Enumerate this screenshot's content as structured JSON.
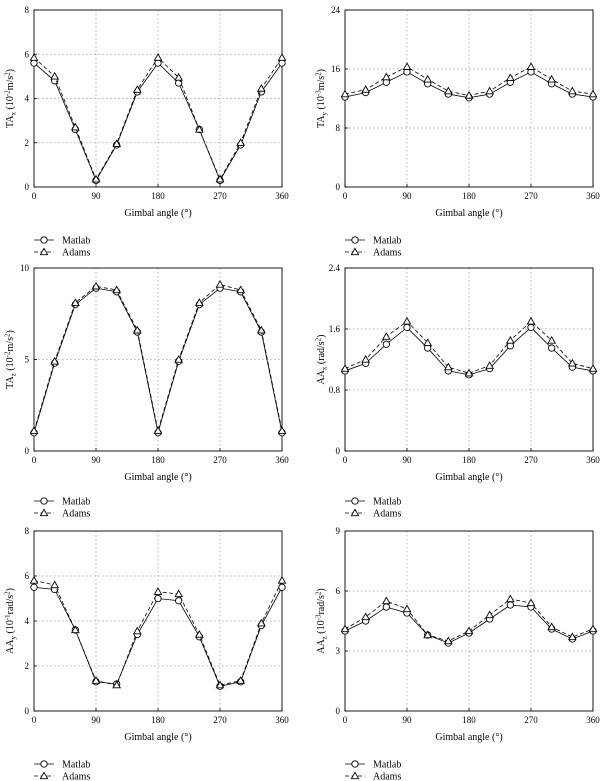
{
  "chart_data": [
    {
      "type": "line",
      "ylabel_main": "TA",
      "ylabel_sub": "x",
      "ylabel_unit": "(10",
      "ylabel_exp": "-2",
      "ylabel_tail": "m/s",
      "ylabel_sq": "2",
      "ylabel_end": ")",
      "xlabel": "Gimbal angle (°)",
      "xlim": [
        0,
        360
      ],
      "ylim": [
        0,
        8
      ],
      "xticks": [
        "0",
        "90",
        "180",
        "270",
        "360"
      ],
      "yticks": [
        "0",
        "2",
        "4",
        "6",
        "8"
      ],
      "ytick_values": [
        0,
        2,
        4,
        6,
        8
      ],
      "x": [
        0,
        30,
        60,
        90,
        120,
        150,
        180,
        210,
        240,
        270,
        300,
        330,
        360
      ],
      "series": [
        {
          "name": "Matlab",
          "marker": "circle",
          "dash": "solid",
          "values": [
            5.6,
            4.8,
            2.6,
            0.3,
            1.9,
            4.3,
            5.6,
            4.7,
            2.6,
            0.3,
            1.9,
            4.3,
            5.6
          ]
        },
        {
          "name": "Adams",
          "marker": "triangle",
          "dash": "dashed",
          "values": [
            5.85,
            5.0,
            2.7,
            0.35,
            1.95,
            4.4,
            5.85,
            4.95,
            2.6,
            0.35,
            2.0,
            4.45,
            5.85
          ]
        }
      ],
      "grid": true,
      "legend": "bottom-left"
    },
    {
      "type": "line",
      "ylabel_main": "TA",
      "ylabel_sub": "y",
      "ylabel_unit": "(10",
      "ylabel_exp": "-3",
      "ylabel_tail": "m/s",
      "ylabel_sq": "2",
      "ylabel_end": ")",
      "xlabel": "Gimbal angle (°)",
      "xlim": [
        0,
        360
      ],
      "ylim": [
        0,
        24
      ],
      "xticks": [
        "0",
        "90",
        "180",
        "270",
        "360"
      ],
      "yticks": [
        "0",
        "8",
        "16",
        "24"
      ],
      "ytick_values": [
        0,
        8,
        16,
        24
      ],
      "x": [
        0,
        30,
        60,
        90,
        120,
        150,
        180,
        210,
        240,
        270,
        300,
        330,
        360
      ],
      "series": [
        {
          "name": "Matlab",
          "marker": "circle",
          "dash": "solid",
          "values": [
            12.2,
            12.8,
            14.2,
            15.6,
            14.0,
            12.6,
            12.1,
            12.6,
            14.2,
            15.6,
            14.0,
            12.6,
            12.2
          ]
        },
        {
          "name": "Adams",
          "marker": "triangle",
          "dash": "dashed",
          "values": [
            12.6,
            13.2,
            14.9,
            16.3,
            14.6,
            13.0,
            12.4,
            13.0,
            14.8,
            16.3,
            14.6,
            13.0,
            12.6
          ]
        }
      ],
      "grid": true,
      "legend": "bottom-left"
    },
    {
      "type": "line",
      "ylabel_main": "TA",
      "ylabel_sub": "z",
      "ylabel_unit": "(10",
      "ylabel_exp": "-2",
      "ylabel_tail": "m/s",
      "ylabel_sq": "2",
      "ylabel_end": ")",
      "xlabel": "Gimbal angle (°)",
      "xlim": [
        0,
        360
      ],
      "ylim": [
        0,
        10
      ],
      "xticks": [
        "0",
        "90",
        "180",
        "270",
        "360"
      ],
      "yticks": [
        "0",
        "5",
        "10"
      ],
      "ytick_values": [
        0,
        5,
        10
      ],
      "x": [
        0,
        30,
        60,
        90,
        120,
        150,
        180,
        210,
        240,
        270,
        300,
        330,
        360
      ],
      "series": [
        {
          "name": "Matlab",
          "marker": "circle",
          "dash": "solid",
          "values": [
            1.0,
            4.8,
            8.0,
            8.9,
            8.7,
            6.5,
            1.0,
            4.9,
            8.0,
            8.9,
            8.7,
            6.5,
            1.0
          ]
        },
        {
          "name": "Adams",
          "marker": "triangle",
          "dash": "dashed",
          "values": [
            1.1,
            4.9,
            8.1,
            9.0,
            8.8,
            6.6,
            1.1,
            5.0,
            8.1,
            9.1,
            8.8,
            6.6,
            1.1
          ]
        }
      ],
      "grid": true,
      "legend": "bottom-left"
    },
    {
      "type": "line",
      "ylabel_main": "AA",
      "ylabel_sub": "x",
      "ylabel_unit": "(rad/s",
      "ylabel_exp": "",
      "ylabel_tail": "",
      "ylabel_sq": "2",
      "ylabel_end": ")",
      "xlabel": "Gimbal angle (°)",
      "xlim": [
        0,
        360
      ],
      "ylim": [
        0,
        2.4
      ],
      "xticks": [
        "0",
        "90",
        "180",
        "270",
        "360"
      ],
      "yticks": [
        "0",
        "0.8",
        "1.6",
        "2.4"
      ],
      "ytick_values": [
        0,
        0.8,
        1.6,
        2.4
      ],
      "x": [
        0,
        30,
        60,
        90,
        120,
        150,
        180,
        210,
        240,
        270,
        300,
        330,
        360
      ],
      "series": [
        {
          "name": "Matlab",
          "marker": "circle",
          "dash": "solid",
          "values": [
            1.05,
            1.15,
            1.4,
            1.62,
            1.35,
            1.05,
            1.0,
            1.08,
            1.38,
            1.62,
            1.35,
            1.1,
            1.05
          ]
        },
        {
          "name": "Adams",
          "marker": "triangle",
          "dash": "dashed",
          "values": [
            1.08,
            1.2,
            1.5,
            1.7,
            1.42,
            1.1,
            1.02,
            1.12,
            1.45,
            1.7,
            1.45,
            1.15,
            1.08
          ]
        }
      ],
      "grid": true,
      "legend": "bottom-left"
    },
    {
      "type": "line",
      "ylabel_main": "AA",
      "ylabel_sub": "y",
      "ylabel_unit": "(10",
      "ylabel_exp": "-1",
      "ylabel_tail": "rad/s",
      "ylabel_sq": "2",
      "ylabel_end": ")",
      "xlabel": "Gimbal angle (°)",
      "xlim": [
        0,
        360
      ],
      "ylim": [
        0,
        8
      ],
      "xticks": [
        "0",
        "90",
        "180",
        "270",
        "360"
      ],
      "yticks": [
        "0",
        "2",
        "4",
        "6",
        "8"
      ],
      "ytick_values": [
        0,
        2,
        4,
        6,
        8
      ],
      "x": [
        0,
        30,
        60,
        90,
        120,
        150,
        180,
        210,
        240,
        270,
        300,
        330,
        360
      ],
      "series": [
        {
          "name": "Matlab",
          "marker": "circle",
          "dash": "solid",
          "values": [
            5.5,
            5.4,
            3.6,
            1.3,
            1.2,
            3.4,
            5.0,
            4.9,
            3.3,
            1.1,
            1.3,
            3.8,
            5.5
          ]
        },
        {
          "name": "Adams",
          "marker": "triangle",
          "dash": "dashed",
          "values": [
            5.8,
            5.6,
            3.6,
            1.35,
            1.15,
            3.55,
            5.3,
            5.2,
            3.4,
            1.15,
            1.35,
            3.9,
            5.8
          ]
        }
      ],
      "grid": true,
      "legend": "bottom-left"
    },
    {
      "type": "line",
      "ylabel_main": "AA",
      "ylabel_sub": "z",
      "ylabel_unit": "(10",
      "ylabel_exp": "-3",
      "ylabel_tail": "rad/s",
      "ylabel_sq": "2",
      "ylabel_end": ")",
      "xlabel": "Gimbal angle (°)",
      "xlim": [
        0,
        360
      ],
      "ylim": [
        0,
        9
      ],
      "xticks": [
        "0",
        "90",
        "180",
        "270",
        "360"
      ],
      "yticks": [
        "0",
        "3",
        "6",
        "9"
      ],
      "ytick_values": [
        0,
        3,
        6,
        9
      ],
      "x": [
        0,
        30,
        60,
        90,
        120,
        150,
        180,
        210,
        240,
        270,
        300,
        330,
        360
      ],
      "series": [
        {
          "name": "Matlab",
          "marker": "circle",
          "dash": "solid",
          "values": [
            4.0,
            4.5,
            5.2,
            4.9,
            3.8,
            3.4,
            3.9,
            4.6,
            5.3,
            5.2,
            4.1,
            3.6,
            4.0
          ]
        },
        {
          "name": "Adams",
          "marker": "triangle",
          "dash": "dashed",
          "values": [
            4.1,
            4.7,
            5.5,
            5.1,
            3.8,
            3.5,
            4.0,
            4.8,
            5.6,
            5.4,
            4.2,
            3.7,
            4.1
          ]
        }
      ],
      "grid": true,
      "legend": "bottom-left"
    }
  ]
}
